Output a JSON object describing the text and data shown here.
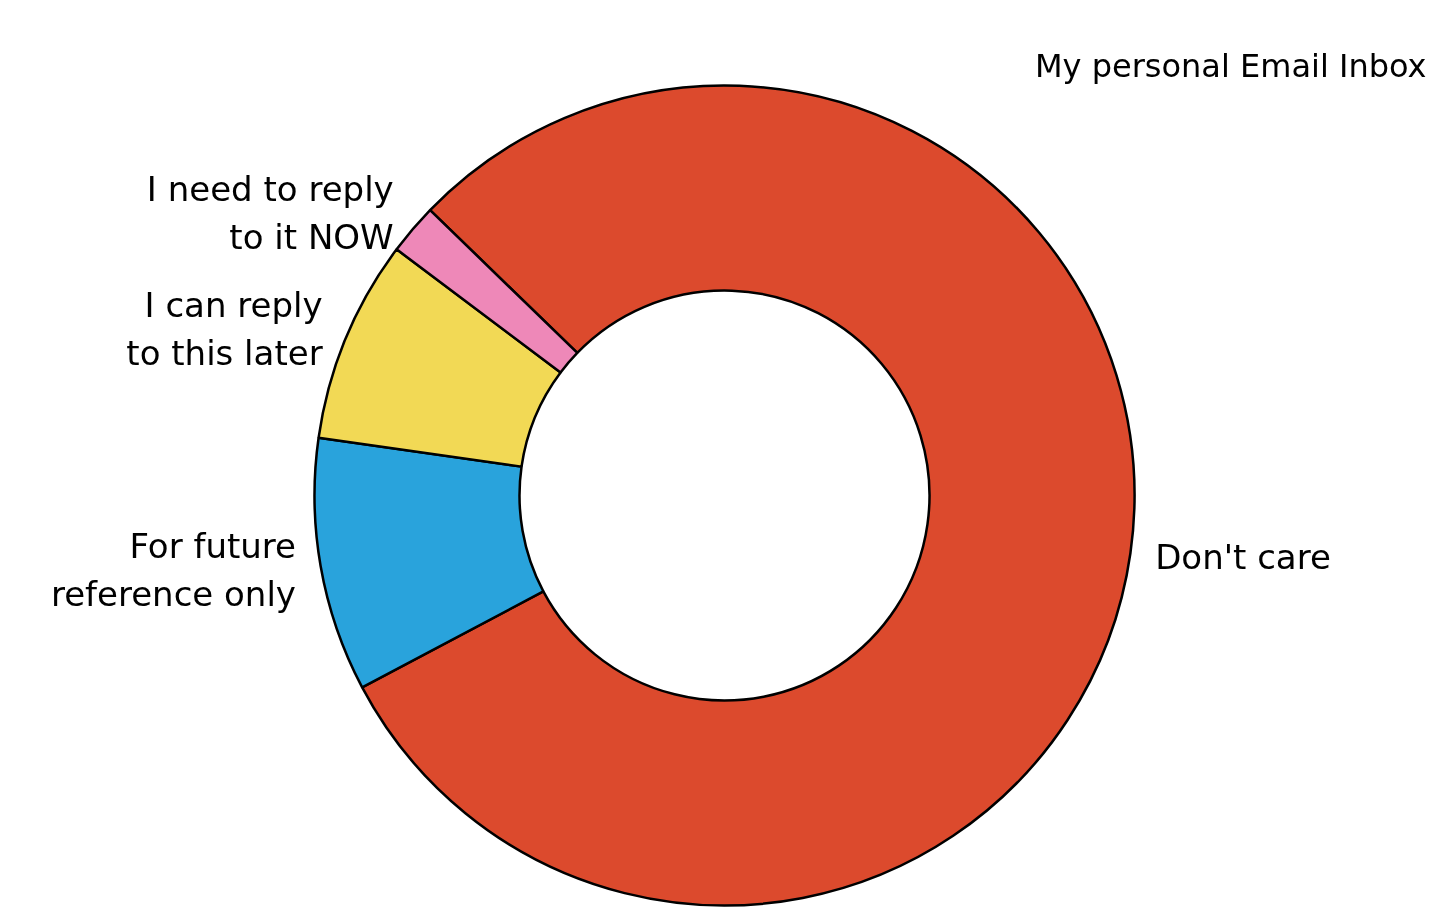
{
  "chart_data": {
    "type": "donut",
    "title": "My personal Email Inbox",
    "categories": [
      "Don't care",
      "For future reference only",
      "I can reply to this later",
      "I need to reply to it NOW"
    ],
    "values": [
      80,
      10,
      8,
      2
    ],
    "colors": [
      "#dc4a2d",
      "#29a3dc",
      "#f2d955",
      "#ee88b8"
    ]
  }
}
